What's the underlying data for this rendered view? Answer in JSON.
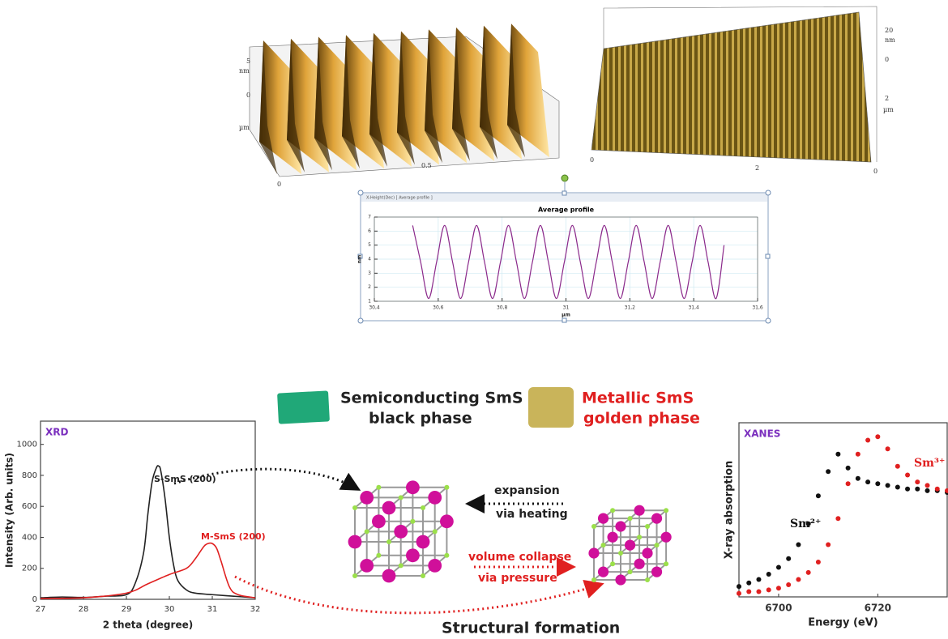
{
  "chart_data": [
    {
      "type": "line",
      "title": "Average profile",
      "window_title": "X-Height(Dec) [ Average profile ]",
      "xlabel": "µm",
      "ylabel": "nm",
      "grid": true,
      "x": [
        30.52,
        30.545,
        30.57,
        30.595,
        30.62,
        30.645,
        30.67,
        30.695,
        30.72,
        30.745,
        30.77,
        30.795,
        30.82,
        30.845,
        30.87,
        30.895,
        30.92,
        30.945,
        30.97,
        30.995,
        31.02,
        31.045,
        31.07,
        31.095,
        31.12,
        31.145,
        31.17,
        31.195,
        31.22,
        31.245,
        31.27,
        31.295,
        31.32,
        31.345,
        31.37,
        31.395,
        31.42,
        31.445,
        31.47,
        31.495
      ],
      "series": [
        {
          "color": "#8b2a8b",
          "values": [
            6.4,
            3.8,
            1.2,
            3.8,
            6.4,
            3.8,
            1.2,
            3.8,
            6.4,
            3.8,
            1.2,
            3.8,
            6.4,
            3.8,
            1.2,
            3.8,
            6.4,
            3.8,
            1.2,
            3.8,
            6.4,
            3.8,
            1.2,
            3.8,
            6.4,
            3.8,
            1.2,
            3.8,
            6.4,
            3.8,
            1.2,
            3.8,
            6.4,
            3.8,
            1.2,
            3.8,
            6.4,
            3.8,
            1.2,
            5.0
          ]
        }
      ],
      "xlim": [
        30.4,
        31.6
      ],
      "xticks": [
        {
          "value": 30.4,
          "label": "30,4"
        },
        {
          "value": 30.6,
          "label": "30,6"
        },
        {
          "value": 30.8,
          "label": "30,8"
        },
        31,
        {
          "value": 31.2,
          "label": "31,2"
        },
        {
          "value": 31.4,
          "label": "31,4"
        },
        {
          "value": 31.6,
          "label": "31,6"
        }
      ],
      "ylim": [
        1,
        7
      ],
      "yticks": [
        1,
        2,
        3,
        4,
        5,
        6,
        7
      ]
    },
    {
      "type": "line",
      "badge": "XRD",
      "badge_color": "#7b2fbe",
      "xlabel": "2 theta (degree)",
      "ylabel": "Intensity (Arb. units)",
      "grid": false,
      "series": [
        {
          "name": "S-SmS (200)",
          "color": "#222222",
          "x": [
            27,
            27.5,
            28,
            28.5,
            29,
            29.2,
            29.4,
            29.5,
            29.6,
            29.7,
            29.75,
            29.8,
            29.9,
            30,
            30.1,
            30.2,
            30.4,
            30.6,
            31,
            31.5,
            32
          ],
          "values": [
            10,
            15,
            12,
            20,
            30,
            100,
            300,
            550,
            760,
            850,
            860,
            830,
            650,
            400,
            220,
            120,
            60,
            40,
            30,
            20,
            10
          ]
        },
        {
          "name": "M-SmS (200)",
          "color": "#e02020",
          "x": [
            27,
            28,
            29,
            29.5,
            30,
            30.4,
            30.6,
            30.8,
            30.9,
            31,
            31.1,
            31.2,
            31.4,
            31.6,
            32
          ],
          "values": [
            5,
            10,
            40,
            100,
            160,
            200,
            260,
            340,
            360,
            360,
            330,
            250,
            80,
            30,
            10
          ]
        }
      ],
      "xlim": [
        27,
        32
      ],
      "xticks": [
        27,
        28,
        29,
        30,
        31,
        32
      ],
      "ylim": [
        0,
        1150
      ],
      "yticks": [
        0,
        200,
        400,
        600,
        800,
        1000
      ]
    },
    {
      "type": "scatter",
      "badge": "XANES",
      "badge_color": "#7b2fbe",
      "xlabel": "Energy (eV)",
      "ylabel": "X-ray absorption",
      "grid": false,
      "x": [
        6692,
        6694,
        6696,
        6698,
        6700,
        6702,
        6704,
        6706,
        6708,
        6710,
        6712,
        6714,
        6716,
        6718,
        6720,
        6722,
        6724,
        6726,
        6728,
        6730,
        6732,
        6734
      ],
      "series": [
        {
          "name": "Sm²⁺",
          "color": "#111111",
          "values": [
            0.06,
            0.08,
            0.1,
            0.13,
            0.17,
            0.22,
            0.3,
            0.42,
            0.58,
            0.72,
            0.82,
            0.74,
            0.68,
            0.66,
            0.65,
            0.64,
            0.63,
            0.62,
            0.62,
            0.61,
            0.61,
            0.6
          ]
        },
        {
          "name": "Sm³⁺",
          "color": "#e02020",
          "values": [
            0.02,
            0.03,
            0.03,
            0.04,
            0.05,
            0.07,
            0.1,
            0.14,
            0.2,
            0.3,
            0.45,
            0.65,
            0.82,
            0.9,
            0.92,
            0.85,
            0.75,
            0.7,
            0.66,
            0.64,
            0.62,
            0.61
          ]
        }
      ],
      "xlim": [
        6692,
        6734
      ],
      "xticks": [
        6700,
        6720
      ],
      "ylim": [
        0,
        1
      ]
    }
  ],
  "afm": {
    "left": [
      "nm",
      "5",
      "0",
      "µm",
      "0.5",
      "0"
    ],
    "right": [
      "20",
      "nm",
      "0",
      "2",
      "µm",
      "0",
      "2",
      "0"
    ]
  },
  "phases": {
    "semiconducting": "Semiconducting SmS",
    "black": "black phase",
    "metallic": "Metallic SmS",
    "golden": "golden phase"
  },
  "arrows": {
    "expansion": "expansion",
    "heating": "via heating",
    "collapse": "volume collapse",
    "pressure": "via pressure"
  },
  "caption": "Structural formation"
}
